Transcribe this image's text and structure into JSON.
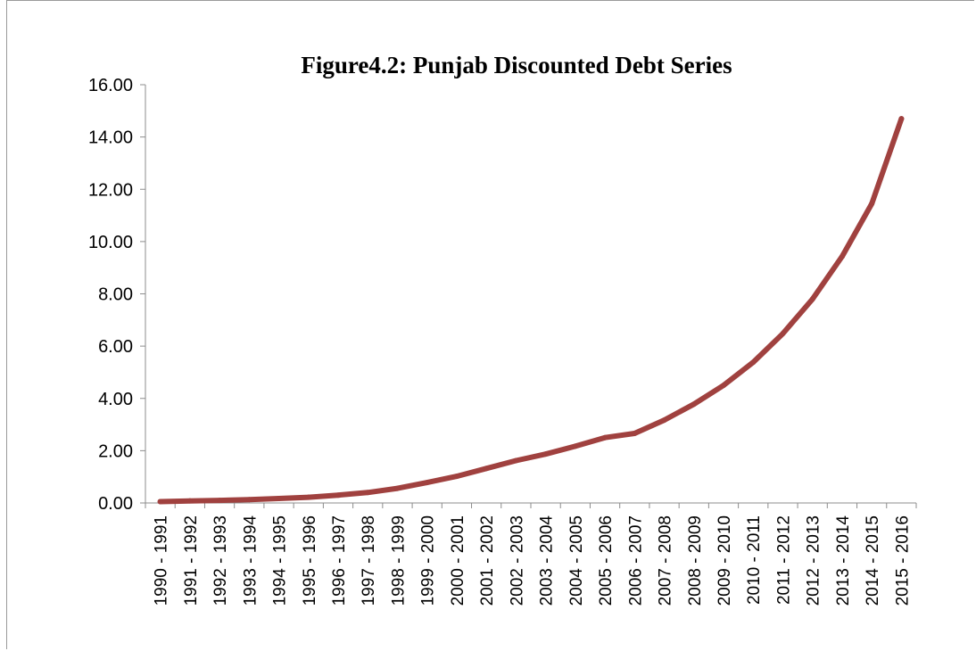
{
  "chart_data": {
    "type": "line",
    "title": "Figure4.2: Punjab Discounted Debt Series",
    "xlabel": "",
    "ylabel": "",
    "ylim": [
      0,
      16
    ],
    "yticks": [
      "0.00",
      "2.00",
      "4.00",
      "6.00",
      "8.00",
      "10.00",
      "12.00",
      "14.00",
      "16.00"
    ],
    "grid": false,
    "legend": "none",
    "categories": [
      "1990 - 1991",
      "1991 - 1992",
      "1992 - 1993",
      "1993 - 1994",
      "1994 - 1995",
      "1995 - 1996",
      "1996 - 1997",
      "1997 - 1998",
      "1998 - 1999",
      "1999 - 2000",
      "2000 - 2001",
      "2001 - 2002",
      "2002 - 2003",
      "2003 - 2004",
      "2004 - 2005",
      "2005 - 2006",
      "2006 - 2007",
      "2007 - 2008",
      "2008 - 2009",
      "2009 - 2010",
      "2010 - 2011",
      "2011 - 2012",
      "2012 - 2013",
      "2013 - 2014",
      "2014 - 2015",
      "2015 - 2016"
    ],
    "series": [
      {
        "color": "#a0413f",
        "values": [
          0.05,
          0.08,
          0.1,
          0.13,
          0.17,
          0.22,
          0.3,
          0.4,
          0.56,
          0.78,
          1.02,
          1.32,
          1.62,
          1.87,
          2.17,
          2.5,
          2.66,
          3.17,
          3.78,
          4.5,
          5.38,
          6.48,
          7.8,
          9.43,
          11.45,
          14.7
        ]
      }
    ]
  }
}
